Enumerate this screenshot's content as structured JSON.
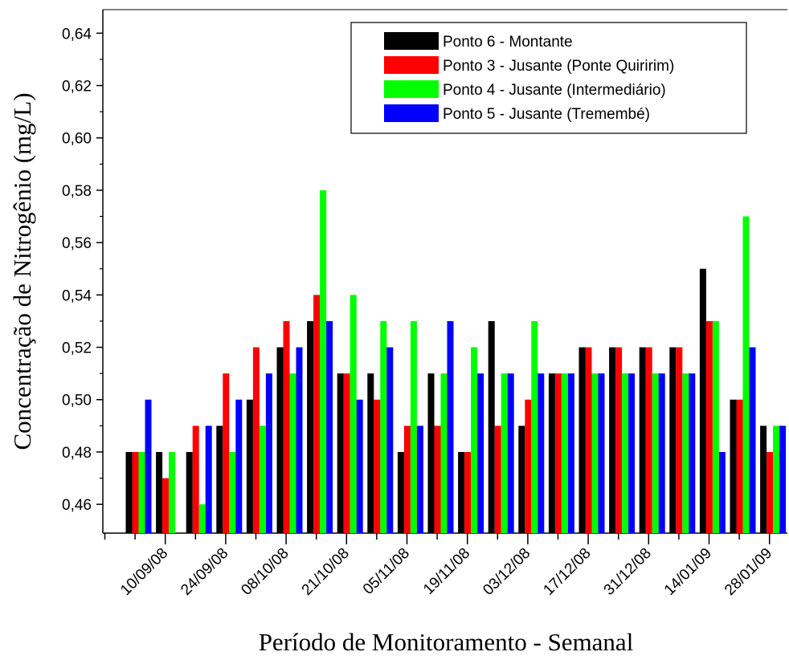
{
  "chart_data": {
    "type": "bar",
    "xlabel": "Período de Monitoramento - Semanal",
    "ylabel": "Concentração de Nitrogênio (mg/L)",
    "ylim": [
      0.449,
      0.649
    ],
    "yticks": [
      "0,46",
      "0,48",
      "0,50",
      "0,52",
      "0,54",
      "0,56",
      "0,58",
      "0,60",
      "0,62",
      "0,64"
    ],
    "ytick_values": [
      0.46,
      0.48,
      0.5,
      0.52,
      0.54,
      0.56,
      0.58,
      0.6,
      0.62,
      0.64
    ],
    "xtick_labels": [
      "10/09/08",
      "24/09/08",
      "08/10/08",
      "21/10/08",
      "05/11/08",
      "19/11/08",
      "03/12/08",
      "17/12/08",
      "31/12/08",
      "14/01/09",
      "28/01/09"
    ],
    "legend_position": "top-right",
    "grid": false,
    "series": [
      {
        "name": "Ponto 6 - Montante",
        "color": "#000000",
        "values": [
          0.48,
          0.48,
          0.48,
          0.49,
          0.5,
          0.52,
          0.53,
          0.51,
          0.51,
          0.48,
          0.51,
          0.48,
          0.53,
          0.49,
          0.51,
          0.52,
          0.52,
          0.52,
          0.52,
          0.55,
          0.5,
          0.49
        ]
      },
      {
        "name": "Ponto 3 - Jusante (Ponte Quiririm)",
        "color": "#ff0000",
        "values": [
          0.48,
          0.47,
          0.49,
          0.51,
          0.52,
          0.53,
          0.54,
          0.51,
          0.5,
          0.49,
          0.49,
          0.48,
          0.49,
          0.5,
          0.51,
          0.52,
          0.52,
          0.52,
          0.52,
          0.53,
          0.5,
          0.48
        ]
      },
      {
        "name": "Ponto 4 - Jusante (Intermediário)",
        "color": "#00ff00",
        "values": [
          0.48,
          0.48,
          0.46,
          0.48,
          0.49,
          0.51,
          0.58,
          0.54,
          0.53,
          0.53,
          0.51,
          0.52,
          0.51,
          0.53,
          0.51,
          0.51,
          0.51,
          0.51,
          0.51,
          0.53,
          0.57,
          0.49
        ]
      },
      {
        "name": "Ponto 5 - Jusante (Tremembé)",
        "color": "#0000ff",
        "values": [
          0.5,
          null,
          0.49,
          0.5,
          0.51,
          0.52,
          0.53,
          0.5,
          0.52,
          0.49,
          0.53,
          0.51,
          0.51,
          0.51,
          0.51,
          0.51,
          0.51,
          0.51,
          0.51,
          0.48,
          0.52,
          0.49
        ]
      }
    ]
  }
}
